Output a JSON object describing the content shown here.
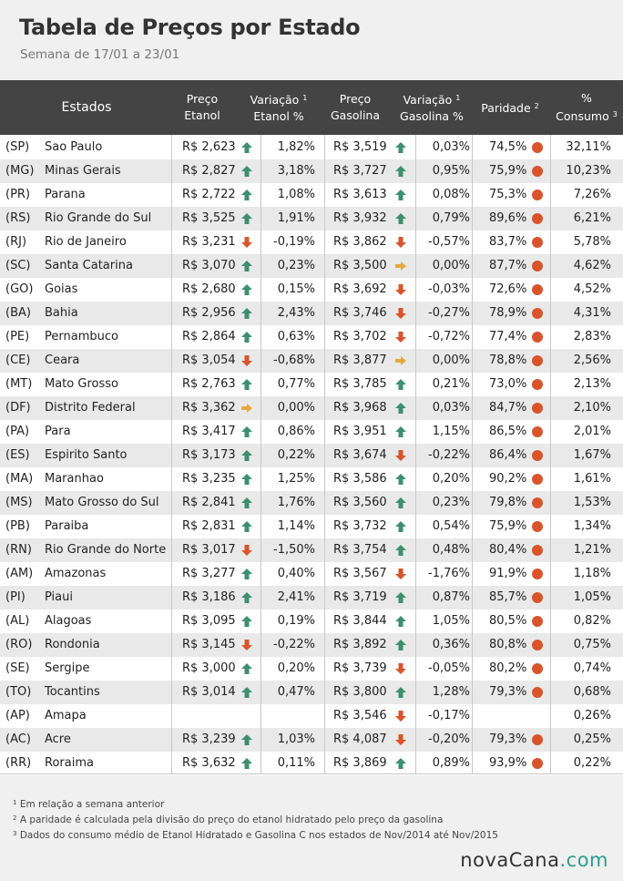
{
  "header": {
    "title": "Tabela de Preços por Estado",
    "subtitle": "Semana de 17/01 a 23/01"
  },
  "columns": {
    "estados": "Estados",
    "preco_etanol_l1": "Preço",
    "preco_etanol_l2": "Etanol",
    "var_etanol_l1": "Variação",
    "var_etanol_l2": "Etanol %",
    "preco_gasolina_l1": "Preço",
    "preco_gasolina_l2": "Gasolina",
    "var_gasolina_l1": "Variação",
    "var_gasolina_l2": "Gasolina %",
    "paridade": "Paridade",
    "consumo_l1": "%",
    "consumo_l2": "Consumo",
    "sup1": "1",
    "sup2": "2",
    "sup3": "3"
  },
  "colors": {
    "up": "#3d8f6f",
    "down": "#d9542b",
    "flat": "#e8a93a",
    "dot": "#d9542b",
    "header_bg": "#444444"
  },
  "rows": [
    {
      "sigla": "(SP)",
      "estado": "Sao Paulo",
      "preco_etanol": "R$ 2,623",
      "dir_e": "up",
      "var_etanol": "1,82%",
      "preco_gasolina": "R$ 3,519",
      "dir_g": "up",
      "var_gasolina": "0,03%",
      "paridade": "74,5%",
      "consumo": "32,11%"
    },
    {
      "sigla": "(MG)",
      "estado": "Minas Gerais",
      "preco_etanol": "R$ 2,827",
      "dir_e": "up",
      "var_etanol": "3,18%",
      "preco_gasolina": "R$ 3,727",
      "dir_g": "up",
      "var_gasolina": "0,95%",
      "paridade": "75,9%",
      "consumo": "10,23%"
    },
    {
      "sigla": "(PR)",
      "estado": "Parana",
      "preco_etanol": "R$ 2,722",
      "dir_e": "up",
      "var_etanol": "1,08%",
      "preco_gasolina": "R$ 3,613",
      "dir_g": "up",
      "var_gasolina": "0,08%",
      "paridade": "75,3%",
      "consumo": "7,26%"
    },
    {
      "sigla": "(RS)",
      "estado": "Rio Grande do Sul",
      "preco_etanol": "R$ 3,525",
      "dir_e": "up",
      "var_etanol": "1,91%",
      "preco_gasolina": "R$ 3,932",
      "dir_g": "up",
      "var_gasolina": "0,79%",
      "paridade": "89,6%",
      "consumo": "6,21%"
    },
    {
      "sigla": "(RJ)",
      "estado": "Rio de Janeiro",
      "preco_etanol": "R$ 3,231",
      "dir_e": "down",
      "var_etanol": "-0,19%",
      "preco_gasolina": "R$ 3,862",
      "dir_g": "down",
      "var_gasolina": "-0,57%",
      "paridade": "83,7%",
      "consumo": "5,78%"
    },
    {
      "sigla": "(SC)",
      "estado": "Santa Catarina",
      "preco_etanol": "R$ 3,070",
      "dir_e": "up",
      "var_etanol": "0,23%",
      "preco_gasolina": "R$ 3,500",
      "dir_g": "flat",
      "var_gasolina": "0,00%",
      "paridade": "87,7%",
      "consumo": "4,62%"
    },
    {
      "sigla": "(GO)",
      "estado": "Goias",
      "preco_etanol": "R$ 2,680",
      "dir_e": "up",
      "var_etanol": "0,15%",
      "preco_gasolina": "R$ 3,692",
      "dir_g": "down",
      "var_gasolina": "-0,03%",
      "paridade": "72,6%",
      "consumo": "4,52%"
    },
    {
      "sigla": "(BA)",
      "estado": "Bahia",
      "preco_etanol": "R$ 2,956",
      "dir_e": "up",
      "var_etanol": "2,43%",
      "preco_gasolina": "R$ 3,746",
      "dir_g": "down",
      "var_gasolina": "-0,27%",
      "paridade": "78,9%",
      "consumo": "4,31%"
    },
    {
      "sigla": "(PE)",
      "estado": "Pernambuco",
      "preco_etanol": "R$ 2,864",
      "dir_e": "up",
      "var_etanol": "0,63%",
      "preco_gasolina": "R$ 3,702",
      "dir_g": "down",
      "var_gasolina": "-0,72%",
      "paridade": "77,4%",
      "consumo": "2,83%"
    },
    {
      "sigla": "(CE)",
      "estado": "Ceara",
      "preco_etanol": "R$ 3,054",
      "dir_e": "down",
      "var_etanol": "-0,68%",
      "preco_gasolina": "R$ 3,877",
      "dir_g": "flat",
      "var_gasolina": "0,00%",
      "paridade": "78,8%",
      "consumo": "2,56%"
    },
    {
      "sigla": "(MT)",
      "estado": "Mato Grosso",
      "preco_etanol": "R$ 2,763",
      "dir_e": "up",
      "var_etanol": "0,77%",
      "preco_gasolina": "R$ 3,785",
      "dir_g": "up",
      "var_gasolina": "0,21%",
      "paridade": "73,0%",
      "consumo": "2,13%"
    },
    {
      "sigla": "(DF)",
      "estado": "Distrito Federal",
      "preco_etanol": "R$ 3,362",
      "dir_e": "flat",
      "var_etanol": "0,00%",
      "preco_gasolina": "R$ 3,968",
      "dir_g": "up",
      "var_gasolina": "0,03%",
      "paridade": "84,7%",
      "consumo": "2,10%"
    },
    {
      "sigla": "(PA)",
      "estado": "Para",
      "preco_etanol": "R$ 3,417",
      "dir_e": "up",
      "var_etanol": "0,86%",
      "preco_gasolina": "R$ 3,951",
      "dir_g": "up",
      "var_gasolina": "1,15%",
      "paridade": "86,5%",
      "consumo": "2,01%"
    },
    {
      "sigla": "(ES)",
      "estado": "Espirito Santo",
      "preco_etanol": "R$ 3,173",
      "dir_e": "up",
      "var_etanol": "0,22%",
      "preco_gasolina": "R$ 3,674",
      "dir_g": "down",
      "var_gasolina": "-0,22%",
      "paridade": "86,4%",
      "consumo": "1,67%"
    },
    {
      "sigla": "(MA)",
      "estado": "Maranhao",
      "preco_etanol": "R$ 3,235",
      "dir_e": "up",
      "var_etanol": "1,25%",
      "preco_gasolina": "R$ 3,586",
      "dir_g": "up",
      "var_gasolina": "0,20%",
      "paridade": "90,2%",
      "consumo": "1,61%"
    },
    {
      "sigla": "(MS)",
      "estado": "Mato Grosso do Sul",
      "preco_etanol": "R$ 2,841",
      "dir_e": "up",
      "var_etanol": "1,76%",
      "preco_gasolina": "R$ 3,560",
      "dir_g": "up",
      "var_gasolina": "0,23%",
      "paridade": "79,8%",
      "consumo": "1,53%"
    },
    {
      "sigla": "(PB)",
      "estado": "Paraiba",
      "preco_etanol": "R$ 2,831",
      "dir_e": "up",
      "var_etanol": "1,14%",
      "preco_gasolina": "R$ 3,732",
      "dir_g": "up",
      "var_gasolina": "0,54%",
      "paridade": "75,9%",
      "consumo": "1,34%"
    },
    {
      "sigla": "(RN)",
      "estado": "Rio Grande do Norte",
      "preco_etanol": "R$ 3,017",
      "dir_e": "down",
      "var_etanol": "-1,50%",
      "preco_gasolina": "R$ 3,754",
      "dir_g": "up",
      "var_gasolina": "0,48%",
      "paridade": "80,4%",
      "consumo": "1,21%"
    },
    {
      "sigla": "(AM)",
      "estado": "Amazonas",
      "preco_etanol": "R$ 3,277",
      "dir_e": "up",
      "var_etanol": "0,40%",
      "preco_gasolina": "R$ 3,567",
      "dir_g": "down",
      "var_gasolina": "-1,76%",
      "paridade": "91,9%",
      "consumo": "1,18%"
    },
    {
      "sigla": "(PI)",
      "estado": "Piaui",
      "preco_etanol": "R$ 3,186",
      "dir_e": "up",
      "var_etanol": "2,41%",
      "preco_gasolina": "R$ 3,719",
      "dir_g": "up",
      "var_gasolina": "0,87%",
      "paridade": "85,7%",
      "consumo": "1,05%"
    },
    {
      "sigla": "(AL)",
      "estado": "Alagoas",
      "preco_etanol": "R$ 3,095",
      "dir_e": "up",
      "var_etanol": "0,19%",
      "preco_gasolina": "R$ 3,844",
      "dir_g": "up",
      "var_gasolina": "1,05%",
      "paridade": "80,5%",
      "consumo": "0,82%"
    },
    {
      "sigla": "(RO)",
      "estado": "Rondonia",
      "preco_etanol": "R$ 3,145",
      "dir_e": "down",
      "var_etanol": "-0,22%",
      "preco_gasolina": "R$ 3,892",
      "dir_g": "up",
      "var_gasolina": "0,36%",
      "paridade": "80,8%",
      "consumo": "0,75%"
    },
    {
      "sigla": "(SE)",
      "estado": "Sergipe",
      "preco_etanol": "R$ 3,000",
      "dir_e": "up",
      "var_etanol": "0,20%",
      "preco_gasolina": "R$ 3,739",
      "dir_g": "down",
      "var_gasolina": "-0,05%",
      "paridade": "80,2%",
      "consumo": "0,74%"
    },
    {
      "sigla": "(TO)",
      "estado": "Tocantins",
      "preco_etanol": "R$ 3,014",
      "dir_e": "up",
      "var_etanol": "0,47%",
      "preco_gasolina": "R$ 3,800",
      "dir_g": "up",
      "var_gasolina": "1,28%",
      "paridade": "79,3%",
      "consumo": "0,68%"
    },
    {
      "sigla": "(AP)",
      "estado": "Amapa",
      "preco_etanol": "",
      "dir_e": "",
      "var_etanol": "",
      "preco_gasolina": "R$ 3,546",
      "dir_g": "down",
      "var_gasolina": "-0,17%",
      "paridade": "",
      "consumo": "0,26%"
    },
    {
      "sigla": "(AC)",
      "estado": "Acre",
      "preco_etanol": "R$ 3,239",
      "dir_e": "up",
      "var_etanol": "1,03%",
      "preco_gasolina": "R$ 4,087",
      "dir_g": "down",
      "var_gasolina": "-0,20%",
      "paridade": "79,3%",
      "consumo": "0,25%"
    },
    {
      "sigla": "(RR)",
      "estado": "Roraima",
      "preco_etanol": "R$ 3,632",
      "dir_e": "up",
      "var_etanol": "0,11%",
      "preco_gasolina": "R$ 3,869",
      "dir_g": "up",
      "var_gasolina": "0,89%",
      "paridade": "93,9%",
      "consumo": "0,22%"
    }
  ],
  "footnotes": {
    "n1_mark": "1",
    "n1": "Em relação a semana anterior",
    "n2_mark": "2",
    "n2": "A paridade é calculada pela divisão do preço do etanol hidratado pelo preço da gasolina",
    "n3_mark": "3",
    "n3": "Dados do consumo médio de Etanol Hidratado e Gasolina C nos estados de Nov/2014 até Nov/2015"
  },
  "logo": {
    "part1": "nova",
    "part2": "Cana",
    "part3": ".com"
  }
}
